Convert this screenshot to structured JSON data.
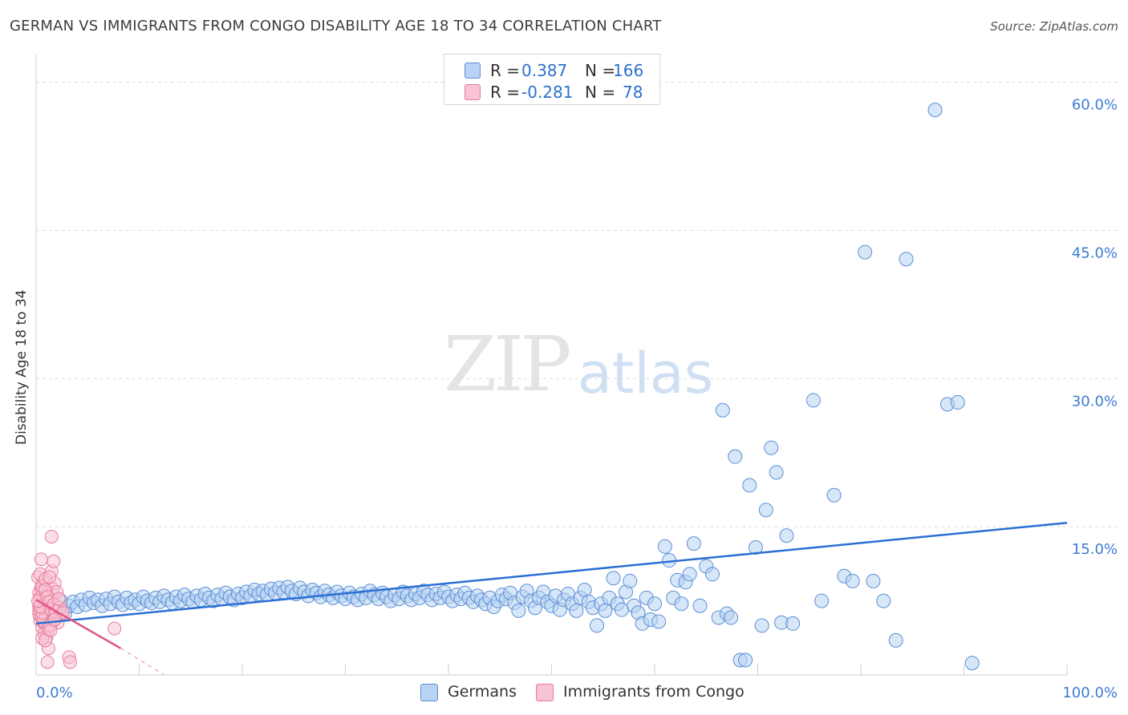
{
  "title": "GERMAN VS IMMIGRANTS FROM CONGO DISABILITY AGE 18 TO 34 CORRELATION CHART",
  "source": "Source: ZipAtlas.com",
  "watermark": {
    "zip": "ZIP",
    "atlas": "atlas"
  },
  "legend": {
    "rows": [
      {
        "r_label": "R =",
        "r_value": "0.387",
        "n_label": "N =",
        "n_value": "166",
        "color": "#a9c8f0"
      },
      {
        "r_label": "R =",
        "r_value": "-0.281",
        "n_label": "N =",
        "n_value": "78",
        "color": "#f7b8c9"
      }
    ]
  },
  "bottom_legend": [
    {
      "label": "Germans",
      "color": "#a9c8f0"
    },
    {
      "label": "Immigrants from Congo",
      "color": "#f7b8c9"
    }
  ],
  "chart_data": {
    "type": "scatter",
    "title": "GERMAN VS IMMIGRANTS FROM CONGO DISABILITY AGE 18 TO 34 CORRELATION CHART",
    "xlabel": "",
    "ylabel": "Disability Age 18 to 34",
    "xlim": [
      0,
      100
    ],
    "ylim": [
      0,
      62
    ],
    "x_tick_labels": [
      "0.0%",
      "100.0%"
    ],
    "y_ticks": [
      15,
      30,
      45,
      60
    ],
    "y_tick_labels": [
      "15.0%",
      "30.0%",
      "45.0%",
      "60.0%"
    ],
    "grid": true,
    "series": [
      {
        "name": "Germans",
        "color": "#5b8fd6",
        "fill": "#b8d3f3",
        "trend": {
          "x": [
            0,
            100
          ],
          "y": [
            5.2,
            15.4
          ],
          "color": "#2b6fd4"
        },
        "points": [
          [
            0.8,
            7.0
          ],
          [
            1.2,
            6.5
          ],
          [
            1.6,
            7.2
          ],
          [
            2.0,
            6.8
          ],
          [
            2.4,
            7.5
          ],
          [
            2.8,
            6.2
          ],
          [
            3.2,
            7.0
          ],
          [
            3.6,
            7.4
          ],
          [
            4.0,
            6.9
          ],
          [
            4.4,
            7.6
          ],
          [
            4.8,
            7.1
          ],
          [
            5.2,
            7.8
          ],
          [
            5.6,
            7.3
          ],
          [
            6.0,
            7.6
          ],
          [
            6.4,
            7.0
          ],
          [
            6.8,
            7.7
          ],
          [
            7.2,
            7.2
          ],
          [
            7.6,
            7.9
          ],
          [
            8.0,
            7.4
          ],
          [
            8.4,
            7.1
          ],
          [
            8.8,
            7.8
          ],
          [
            9.2,
            7.3
          ],
          [
            9.6,
            7.6
          ],
          [
            10.0,
            7.2
          ],
          [
            10.4,
            7.9
          ],
          [
            10.8,
            7.5
          ],
          [
            11.2,
            7.3
          ],
          [
            11.6,
            7.8
          ],
          [
            12.0,
            7.4
          ],
          [
            12.4,
            8.0
          ],
          [
            12.8,
            7.6
          ],
          [
            13.2,
            7.3
          ],
          [
            13.6,
            7.9
          ],
          [
            14.0,
            7.5
          ],
          [
            14.4,
            8.1
          ],
          [
            14.8,
            7.7
          ],
          [
            15.2,
            7.4
          ],
          [
            15.6,
            8.0
          ],
          [
            16.0,
            7.6
          ],
          [
            16.4,
            8.2
          ],
          [
            16.8,
            7.8
          ],
          [
            17.2,
            7.5
          ],
          [
            17.6,
            8.1
          ],
          [
            18.0,
            7.7
          ],
          [
            18.4,
            8.3
          ],
          [
            18.8,
            7.9
          ],
          [
            19.2,
            7.6
          ],
          [
            19.6,
            8.2
          ],
          [
            20.0,
            7.8
          ],
          [
            20.4,
            8.4
          ],
          [
            20.8,
            8.0
          ],
          [
            21.2,
            8.6
          ],
          [
            21.6,
            8.2
          ],
          [
            22.0,
            8.5
          ],
          [
            22.4,
            8.1
          ],
          [
            22.8,
            8.7
          ],
          [
            23.2,
            8.3
          ],
          [
            23.6,
            8.8
          ],
          [
            24.0,
            8.4
          ],
          [
            24.4,
            8.9
          ],
          [
            24.8,
            8.5
          ],
          [
            25.2,
            8.2
          ],
          [
            25.6,
            8.8
          ],
          [
            26.0,
            8.4
          ],
          [
            26.4,
            8.0
          ],
          [
            26.8,
            8.6
          ],
          [
            27.2,
            8.3
          ],
          [
            27.6,
            7.9
          ],
          [
            28.0,
            8.5
          ],
          [
            28.4,
            8.1
          ],
          [
            28.8,
            7.8
          ],
          [
            29.2,
            8.4
          ],
          [
            29.6,
            8.0
          ],
          [
            30.0,
            7.7
          ],
          [
            30.4,
            8.3
          ],
          [
            30.8,
            7.9
          ],
          [
            31.2,
            7.6
          ],
          [
            31.6,
            8.2
          ],
          [
            32.0,
            7.8
          ],
          [
            32.4,
            8.5
          ],
          [
            32.8,
            8.1
          ],
          [
            33.2,
            7.7
          ],
          [
            33.6,
            8.3
          ],
          [
            34.0,
            7.9
          ],
          [
            34.4,
            7.5
          ],
          [
            34.8,
            8.1
          ],
          [
            35.2,
            7.7
          ],
          [
            35.6,
            8.4
          ],
          [
            36.0,
            8.0
          ],
          [
            36.4,
            7.6
          ],
          [
            36.8,
            8.2
          ],
          [
            37.2,
            7.8
          ],
          [
            37.6,
            8.5
          ],
          [
            38.0,
            8.1
          ],
          [
            38.4,
            7.6
          ],
          [
            38.8,
            8.2
          ],
          [
            39.2,
            7.8
          ],
          [
            39.6,
            8.4
          ],
          [
            40.0,
            7.9
          ],
          [
            40.4,
            7.5
          ],
          [
            40.8,
            8.1
          ],
          [
            41.2,
            7.7
          ],
          [
            41.6,
            8.3
          ],
          [
            42.0,
            7.8
          ],
          [
            42.4,
            7.4
          ],
          [
            42.8,
            8.0
          ],
          [
            43.2,
            7.6
          ],
          [
            43.6,
            7.2
          ],
          [
            44.0,
            7.8
          ],
          [
            44.4,
            6.9
          ],
          [
            44.8,
            7.5
          ],
          [
            45.2,
            8.1
          ],
          [
            45.6,
            7.7
          ],
          [
            46.0,
            8.3
          ],
          [
            46.4,
            7.3
          ],
          [
            46.8,
            6.5
          ],
          [
            47.2,
            7.9
          ],
          [
            47.6,
            8.5
          ],
          [
            48.0,
            7.5
          ],
          [
            48.4,
            6.8
          ],
          [
            48.8,
            7.8
          ],
          [
            49.2,
            8.4
          ],
          [
            49.6,
            7.4
          ],
          [
            50.0,
            7.0
          ],
          [
            50.4,
            8.0
          ],
          [
            50.8,
            6.6
          ],
          [
            51.2,
            7.6
          ],
          [
            51.6,
            8.2
          ],
          [
            52.0,
            7.2
          ],
          [
            52.4,
            6.5
          ],
          [
            52.8,
            7.8
          ],
          [
            53.2,
            8.6
          ],
          [
            53.6,
            7.4
          ],
          [
            54.0,
            6.8
          ],
          [
            54.4,
            5.0
          ],
          [
            54.8,
            7.2
          ],
          [
            55.2,
            6.5
          ],
          [
            55.6,
            7.8
          ],
          [
            56.0,
            9.8
          ],
          [
            56.4,
            7.2
          ],
          [
            56.8,
            6.6
          ],
          [
            57.2,
            8.4
          ],
          [
            57.6,
            9.5
          ],
          [
            58.0,
            7.0
          ],
          [
            58.4,
            6.3
          ],
          [
            58.8,
            5.2
          ],
          [
            59.2,
            7.8
          ],
          [
            59.6,
            5.6
          ],
          [
            60.0,
            7.2
          ],
          [
            60.4,
            5.4
          ],
          [
            61.0,
            13.0
          ],
          [
            61.4,
            11.6
          ],
          [
            61.8,
            7.8
          ],
          [
            62.2,
            9.6
          ],
          [
            62.6,
            7.2
          ],
          [
            63.0,
            9.4
          ],
          [
            63.4,
            10.2
          ],
          [
            63.8,
            13.3
          ],
          [
            64.4,
            7.0
          ],
          [
            65.0,
            11.0
          ],
          [
            65.6,
            10.2
          ],
          [
            66.2,
            5.8
          ],
          [
            66.6,
            26.8
          ],
          [
            67.0,
            6.2
          ],
          [
            67.4,
            5.8
          ],
          [
            67.8,
            22.1
          ],
          [
            68.3,
            1.5
          ],
          [
            68.8,
            1.5
          ],
          [
            69.2,
            19.2
          ],
          [
            69.8,
            12.9
          ],
          [
            70.4,
            5.0
          ],
          [
            70.8,
            16.7
          ],
          [
            71.3,
            23.0
          ],
          [
            71.8,
            20.5
          ],
          [
            72.3,
            5.3
          ],
          [
            72.8,
            14.1
          ],
          [
            73.4,
            5.2
          ],
          [
            75.4,
            27.8
          ],
          [
            76.2,
            7.5
          ],
          [
            77.4,
            18.2
          ],
          [
            78.4,
            10.0
          ],
          [
            79.2,
            9.5
          ],
          [
            80.4,
            42.8
          ],
          [
            81.2,
            9.5
          ],
          [
            82.2,
            7.5
          ],
          [
            83.4,
            3.5
          ],
          [
            84.4,
            42.1
          ],
          [
            87.2,
            57.2
          ],
          [
            88.4,
            27.4
          ],
          [
            89.4,
            27.6
          ],
          [
            90.8,
            1.2
          ]
        ]
      },
      {
        "name": "Immigrants from Congo",
        "color": "#e87a9c",
        "fill": "#f8c4d3",
        "trend": {
          "x": [
            0,
            8.2
          ],
          "y": [
            7.6,
            2.7
          ],
          "color": "#e05588",
          "dashed_to": [
            12.4,
            0.0
          ]
        },
        "points": [
          [
            0.3,
            6.5
          ],
          [
            0.4,
            7.2
          ],
          [
            0.5,
            6.8
          ],
          [
            0.6,
            5.8
          ],
          [
            0.7,
            7.5
          ],
          [
            0.8,
            6.2
          ],
          [
            0.9,
            7.9
          ],
          [
            1.0,
            6.0
          ],
          [
            1.1,
            7.0
          ],
          [
            1.2,
            6.6
          ],
          [
            0.3,
            8.3
          ],
          [
            0.5,
            8.9
          ],
          [
            0.7,
            9.5
          ],
          [
            0.4,
            5.5
          ],
          [
            0.6,
            4.8
          ],
          [
            0.8,
            5.2
          ],
          [
            1.0,
            8.0
          ],
          [
            1.2,
            7.7
          ],
          [
            0.3,
            6.1
          ],
          [
            0.5,
            7.4
          ],
          [
            0.7,
            6.9
          ],
          [
            0.9,
            6.4
          ],
          [
            1.1,
            5.7
          ],
          [
            0.4,
            7.8
          ],
          [
            0.6,
            8.5
          ],
          [
            0.8,
            7.1
          ],
          [
            1.0,
            6.3
          ],
          [
            1.2,
            5.9
          ],
          [
            0.3,
            7.0
          ],
          [
            0.5,
            6.0
          ],
          [
            0.7,
            5.5
          ],
          [
            0.9,
            7.3
          ],
          [
            1.1,
            8.2
          ],
          [
            1.3,
            6.7
          ],
          [
            1.5,
            7.6
          ],
          [
            1.7,
            6.2
          ],
          [
            1.9,
            7.0
          ],
          [
            0.2,
            9.9
          ],
          [
            0.4,
            10.2
          ],
          [
            0.6,
            9.0
          ],
          [
            0.8,
            4.2
          ],
          [
            1.0,
            3.8
          ],
          [
            1.2,
            4.6
          ],
          [
            1.4,
            5.1
          ],
          [
            1.6,
            8.7
          ],
          [
            1.8,
            9.3
          ],
          [
            2.0,
            8.4
          ],
          [
            1.5,
            10.5
          ],
          [
            1.7,
            11.5
          ],
          [
            0.5,
            11.7
          ],
          [
            0.9,
            9.7
          ],
          [
            1.3,
            9.9
          ],
          [
            1.5,
            14.0
          ],
          [
            2.1,
            5.3
          ],
          [
            2.4,
            6.1
          ],
          [
            1.7,
            5.5
          ],
          [
            1.3,
            5.0
          ],
          [
            0.6,
            6.3
          ],
          [
            0.4,
            6.9
          ],
          [
            0.2,
            7.5
          ],
          [
            0.9,
            8.6
          ],
          [
            1.1,
            7.9
          ],
          [
            1.3,
            7.4
          ],
          [
            1.5,
            6.6
          ],
          [
            1.7,
            7.1
          ],
          [
            1.9,
            6.4
          ],
          [
            2.3,
            6.8
          ],
          [
            2.6,
            6.3
          ],
          [
            1.2,
            2.7
          ],
          [
            1.1,
            1.3
          ],
          [
            3.2,
            1.8
          ],
          [
            3.3,
            1.3
          ],
          [
            7.6,
            4.7
          ],
          [
            0.6,
            3.7
          ],
          [
            0.9,
            3.5
          ],
          [
            1.4,
            4.5
          ],
          [
            1.8,
            5.6
          ],
          [
            2.2,
            7.7
          ]
        ]
      }
    ]
  }
}
